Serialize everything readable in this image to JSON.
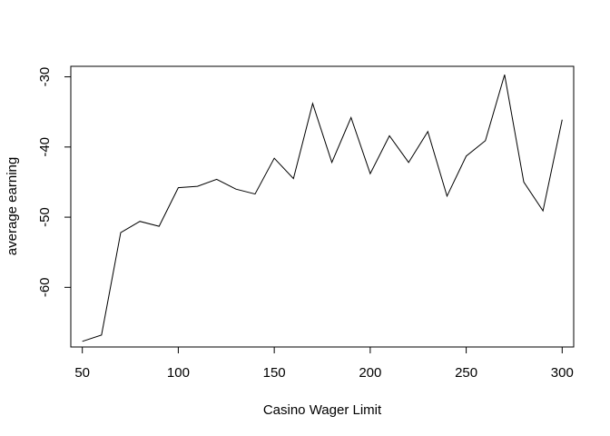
{
  "chart_data": {
    "type": "line",
    "title": "",
    "xlabel": "Casino Wager Limit",
    "ylabel": "average earning",
    "xlim": [
      44,
      306
    ],
    "ylim": [
      -68.5,
      -28.5
    ],
    "xticks": [
      50,
      100,
      150,
      200,
      250,
      300
    ],
    "yticks": [
      -60,
      -50,
      -40,
      -30
    ],
    "grid": false,
    "x": [
      50,
      60,
      70,
      80,
      90,
      100,
      110,
      120,
      130,
      140,
      150,
      160,
      170,
      180,
      190,
      200,
      210,
      220,
      230,
      240,
      250,
      260,
      270,
      280,
      290,
      300
    ],
    "y": [
      -67.7,
      -66.8,
      -52.2,
      -50.6,
      -51.3,
      -45.8,
      -45.6,
      -44.6,
      -46.0,
      -46.7,
      -41.6,
      -44.5,
      -33.8,
      -42.2,
      -35.8,
      -43.8,
      -38.4,
      -42.2,
      -37.8,
      -47.0,
      -41.3,
      -39.1,
      -29.7,
      -45.0,
      -49.1,
      -36.1
    ],
    "line_color": "#000000"
  }
}
